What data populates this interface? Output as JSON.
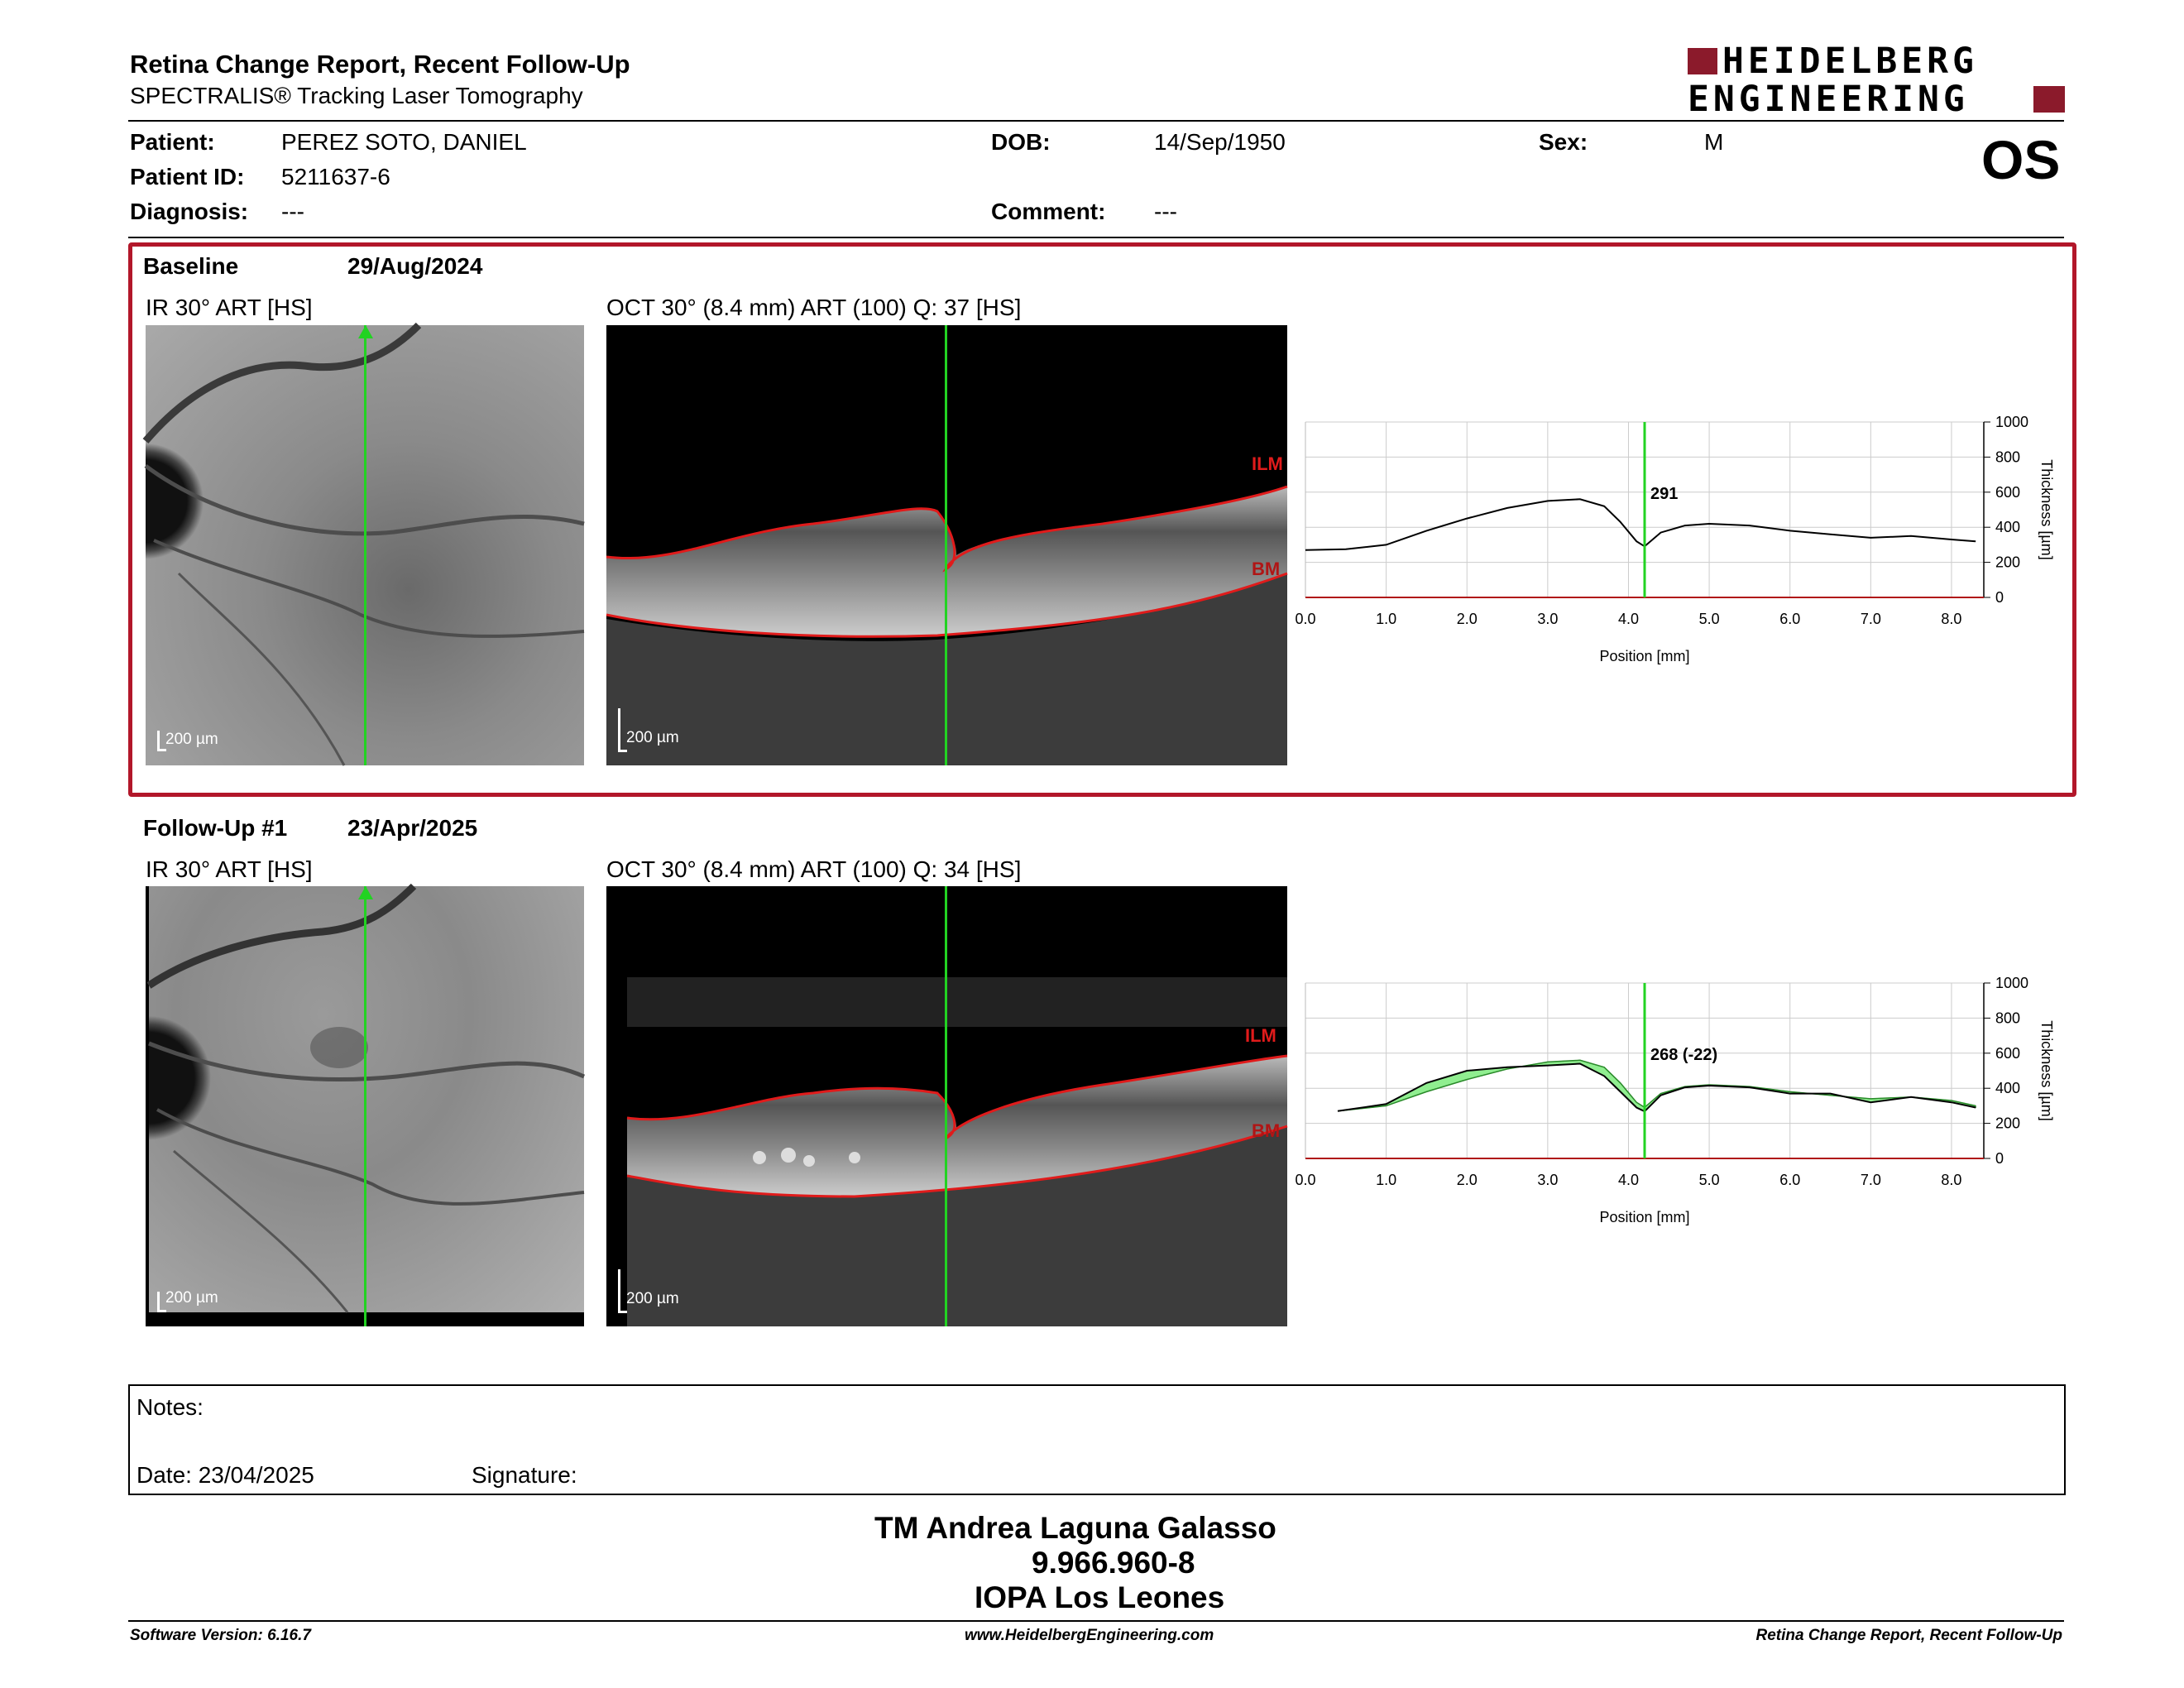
{
  "header": {
    "title": "Retina Change Report, Recent Follow-Up",
    "subtitle": "SPECTRALIS® Tracking Laser Tomography",
    "logo_line1": "HEIDELBERG",
    "logo_line2": "ENGINEERING",
    "eye": "OS"
  },
  "patient": {
    "name_label": "Patient:",
    "name": "PEREZ SOTO, DANIEL",
    "id_label": "Patient ID:",
    "id": "5211637-6",
    "diag_label": "Diagnosis:",
    "diagnosis": "---",
    "dob_label": "DOB:",
    "dob": "14/Sep/1950",
    "comment_label": "Comment:",
    "comment": "---",
    "sex_label": "Sex:",
    "sex": "M"
  },
  "baseline": {
    "label": "Baseline",
    "date": "29/Aug/2024",
    "ir_title": "IR 30° ART [HS]",
    "oct_title": "OCT 30° (8.4 mm) ART (100) Q: 37 [HS]",
    "scale_ir": "200 µm",
    "scale_oct": "200 µm",
    "ilm": "ILM",
    "bm": "BM",
    "marker_value": "291"
  },
  "followup": {
    "label": "Follow-Up #1",
    "date": "23/Apr/2025",
    "ir_title": "IR 30° ART [HS]",
    "oct_title": "OCT 30° (8.4 mm) ART (100) Q: 34 [HS]",
    "scale_ir": "200 µm",
    "scale_oct": "200 µm",
    "ilm": "ILM",
    "bm": "BM",
    "marker_value": "268 (-22)"
  },
  "chart_data": [
    {
      "type": "line",
      "xlabel": "Position [mm]",
      "ylabel": "Thickness [µm]",
      "xlim": [
        0,
        8.4
      ],
      "ylim": [
        0,
        1000
      ],
      "x_ticks": [
        "0.0",
        "1.0",
        "2.0",
        "3.0",
        "4.0",
        "5.0",
        "6.0",
        "7.0",
        "8.0"
      ],
      "y_ticks": [
        "0",
        "200",
        "400",
        "600",
        "800",
        "1000"
      ],
      "marker_x": 4.2,
      "series": [
        {
          "x": [
            0,
            0.5,
            1.0,
            1.5,
            2.0,
            2.5,
            3.0,
            3.4,
            3.7,
            3.9,
            4.1,
            4.2,
            4.4,
            4.7,
            5.0,
            5.5,
            6.0,
            6.5,
            7.0,
            7.5,
            8.0,
            8.3
          ],
          "values": [
            270,
            275,
            300,
            380,
            450,
            510,
            550,
            560,
            520,
            430,
            320,
            291,
            370,
            410,
            420,
            410,
            380,
            360,
            340,
            350,
            330,
            320
          ]
        }
      ]
    },
    {
      "type": "line",
      "xlabel": "Position [mm]",
      "ylabel": "Thickness [µm]",
      "xlim": [
        0,
        8.4
      ],
      "ylim": [
        0,
        1000
      ],
      "x_ticks": [
        "0.0",
        "1.0",
        "2.0",
        "3.0",
        "4.0",
        "5.0",
        "6.0",
        "7.0",
        "8.0"
      ],
      "y_ticks": [
        "0",
        "200",
        "400",
        "600",
        "800",
        "1000"
      ],
      "marker_x": 4.2,
      "series": [
        {
          "x": [
            0.4,
            1.0,
            1.5,
            2.0,
            2.5,
            3.0,
            3.4,
            3.7,
            3.9,
            4.1,
            4.2,
            4.4,
            4.7,
            5.0,
            5.5,
            6.0,
            6.5,
            7.0,
            7.5,
            8.0,
            8.3
          ],
          "values": [
            270,
            300,
            380,
            450,
            510,
            550,
            560,
            520,
            430,
            320,
            291,
            370,
            410,
            420,
            410,
            380,
            360,
            340,
            350,
            330,
            300
          ]
        },
        {
          "x": [
            0.4,
            1.0,
            1.5,
            2.0,
            2.5,
            3.0,
            3.4,
            3.7,
            3.9,
            4.1,
            4.2,
            4.4,
            4.7,
            5.0,
            5.5,
            6.0,
            6.5,
            7.0,
            7.5,
            8.0,
            8.3
          ],
          "values": [
            270,
            310,
            430,
            500,
            520,
            530,
            540,
            470,
            380,
            290,
            268,
            360,
            405,
            415,
            405,
            370,
            370,
            320,
            350,
            320,
            290
          ]
        }
      ]
    }
  ],
  "notes": {
    "label": "Notes:",
    "date_label": "Date: 23/04/2025",
    "signature_label": "Signature:"
  },
  "signer": {
    "name": "TM Andrea Laguna Galasso",
    "id": "9.966.960-8",
    "org": "IOPA Los Leones"
  },
  "footer": {
    "left": "Software Version: 6.16.7",
    "center": "www.HeidelbergEngineering.com",
    "right": "Retina Change Report, Recent Follow-Up"
  },
  "colors": {
    "frame_red": "#b2172a",
    "green_marker": "#22d322",
    "ilm_red": "#e01b1b",
    "fill_green": "#90ee90",
    "fill_red": "#f08080"
  }
}
